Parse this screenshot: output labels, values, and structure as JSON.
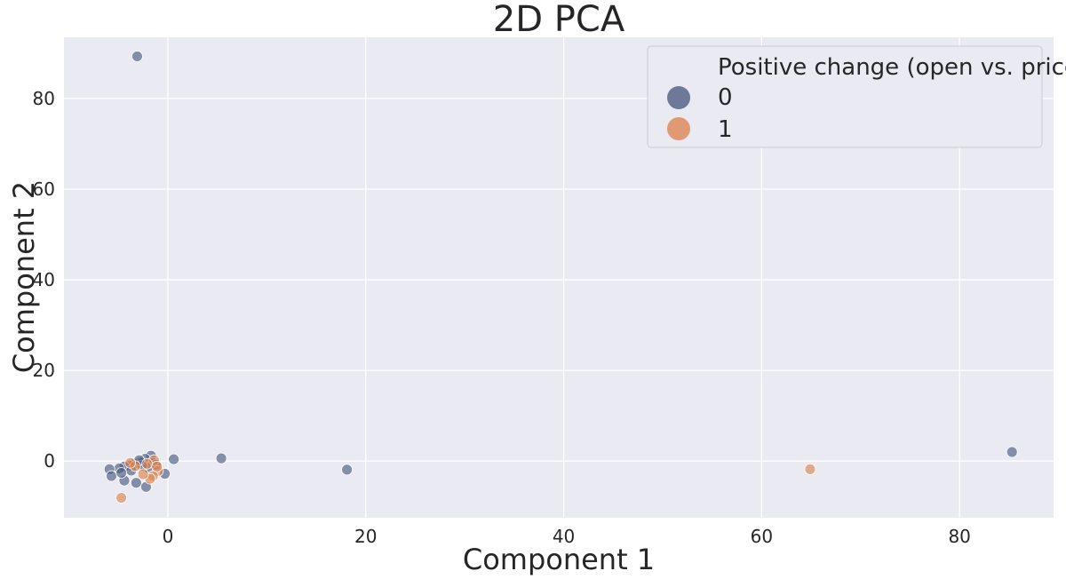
{
  "chart_data": {
    "type": "scatter",
    "title": "2D PCA",
    "xlabel": "Component 1",
    "ylabel": "Component 2",
    "xlim": [
      -10.5,
      89.5
    ],
    "ylim": [
      -12.5,
      93.5
    ],
    "xticks": [
      0,
      20,
      40,
      60,
      80
    ],
    "yticks": [
      0,
      20,
      40,
      60,
      80
    ],
    "grid": true,
    "legend": {
      "title": "Positive change (open vs. price)",
      "placement": "top-right",
      "entries": [
        "0",
        "1"
      ]
    },
    "series": [
      {
        "name": "0",
        "color": "#4c5c82",
        "points": [
          [
            -3.1,
            89.3
          ],
          [
            85.3,
            2.0
          ],
          [
            18.1,
            -1.9
          ],
          [
            5.4,
            0.6
          ],
          [
            0.6,
            0.4
          ],
          [
            -0.3,
            -2.8
          ],
          [
            -1.7,
            1.2
          ],
          [
            -2.3,
            0.5
          ],
          [
            -2.8,
            -0.3
          ],
          [
            -3.4,
            -0.6
          ],
          [
            -3.9,
            -1.0
          ],
          [
            -4.4,
            -1.2
          ],
          [
            -4.9,
            -1.6
          ],
          [
            -5.9,
            -1.8
          ],
          [
            -5.7,
            -3.3
          ],
          [
            -4.4,
            -4.3
          ],
          [
            -3.2,
            -4.8
          ],
          [
            -2.2,
            -5.7
          ],
          [
            -1.5,
            -0.4
          ],
          [
            -2.0,
            -1.5
          ],
          [
            -2.6,
            -1.0
          ],
          [
            -3.7,
            -2.1
          ],
          [
            -4.7,
            -2.6
          ],
          [
            -1.2,
            -0.8
          ],
          [
            -2.9,
            0.2
          ]
        ]
      },
      {
        "name": "1",
        "color": "#dd8452",
        "points": [
          [
            64.9,
            -1.8
          ],
          [
            -4.7,
            -8.1
          ],
          [
            -1.0,
            -2.2
          ],
          [
            -1.5,
            -3.3
          ],
          [
            -1.8,
            -3.9
          ],
          [
            -2.5,
            -2.9
          ],
          [
            -3.3,
            -1.1
          ],
          [
            -3.8,
            -0.4
          ],
          [
            -1.4,
            0.2
          ],
          [
            -2.1,
            -0.6
          ],
          [
            -1.1,
            -1.2
          ]
        ]
      }
    ]
  }
}
